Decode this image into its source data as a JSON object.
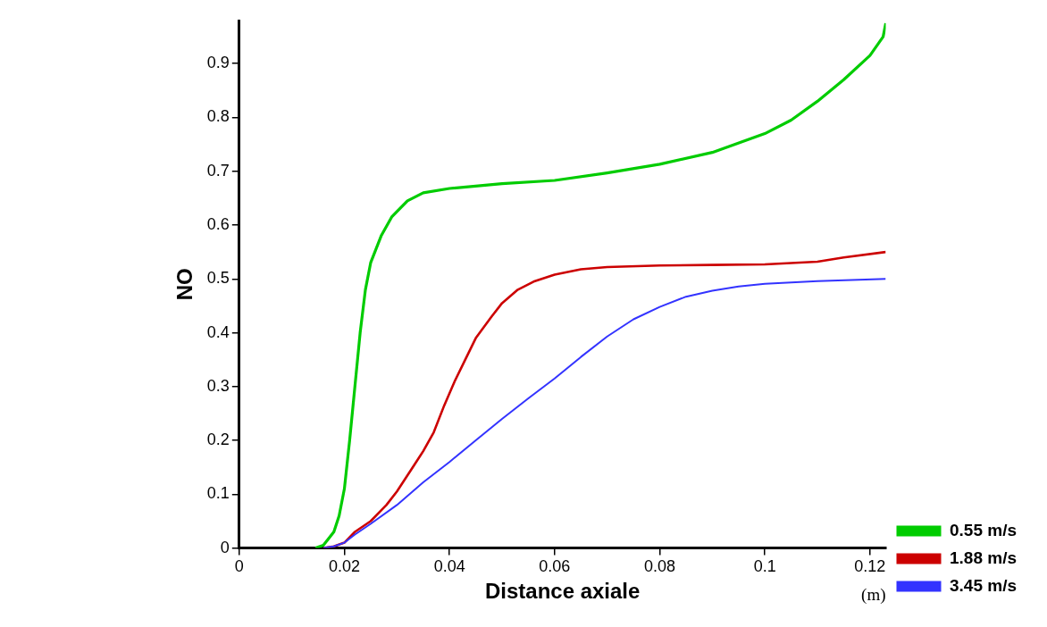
{
  "chart_data": {
    "type": "line",
    "xlabel": "Distance axiale",
    "ylabel": "NO",
    "annotations": [
      "(m)"
    ],
    "xlim": [
      0,
      0.123
    ],
    "xticks": [
      0,
      0.02,
      0.04,
      0.06,
      0.08,
      0.1,
      0.12
    ],
    "ylim": [
      0,
      0.98
    ],
    "yticks": [
      0,
      0.1,
      0.2,
      0.3,
      0.4,
      0.5,
      0.6,
      0.7,
      0.8,
      0.9
    ],
    "grid": false,
    "legend": "bottom right",
    "marker": "none",
    "line_style": "solid",
    "series": [
      {
        "name": "0.55 m/s",
        "color": "#00cc00",
        "x": [
          0.0145,
          0.016,
          0.018,
          0.019,
          0.02,
          0.021,
          0.022,
          0.023,
          0.024,
          0.025,
          0.027,
          0.029,
          0.032,
          0.035,
          0.04,
          0.05,
          0.06,
          0.07,
          0.08,
          0.09,
          0.1,
          0.105,
          0.11,
          0.115,
          0.12,
          0.1225,
          0.123
        ],
        "values": [
          0,
          0.005,
          0.03,
          0.06,
          0.11,
          0.2,
          0.3,
          0.4,
          0.48,
          0.53,
          0.58,
          0.615,
          0.645,
          0.66,
          0.668,
          0.677,
          0.683,
          0.697,
          0.713,
          0.735,
          0.77,
          0.795,
          0.83,
          0.87,
          0.915,
          0.95,
          0.975
        ]
      },
      {
        "name": "1.88 m/s",
        "color": "#cc0000",
        "x": [
          0.016,
          0.018,
          0.02,
          0.022,
          0.025,
          0.028,
          0.03,
          0.033,
          0.035,
          0.037,
          0.039,
          0.041,
          0.043,
          0.045,
          0.048,
          0.05,
          0.053,
          0.056,
          0.06,
          0.065,
          0.07,
          0.08,
          0.09,
          0.1,
          0.11,
          0.115,
          0.123
        ],
        "values": [
          0,
          0.003,
          0.01,
          0.03,
          0.05,
          0.08,
          0.105,
          0.15,
          0.18,
          0.215,
          0.265,
          0.31,
          0.35,
          0.39,
          0.43,
          0.455,
          0.48,
          0.495,
          0.508,
          0.518,
          0.522,
          0.525,
          0.526,
          0.527,
          0.532,
          0.54,
          0.55
        ]
      },
      {
        "name": "3.45 m/s",
        "color": "#3333ff",
        "x": [
          0.016,
          0.018,
          0.02,
          0.022,
          0.025,
          0.03,
          0.035,
          0.04,
          0.045,
          0.05,
          0.055,
          0.06,
          0.065,
          0.07,
          0.075,
          0.08,
          0.085,
          0.09,
          0.095,
          0.1,
          0.11,
          0.123
        ],
        "values": [
          0,
          0.003,
          0.01,
          0.025,
          0.045,
          0.08,
          0.122,
          0.16,
          0.2,
          0.24,
          0.278,
          0.315,
          0.355,
          0.393,
          0.425,
          0.448,
          0.467,
          0.478,
          0.486,
          0.491,
          0.496,
          0.5
        ]
      }
    ]
  }
}
